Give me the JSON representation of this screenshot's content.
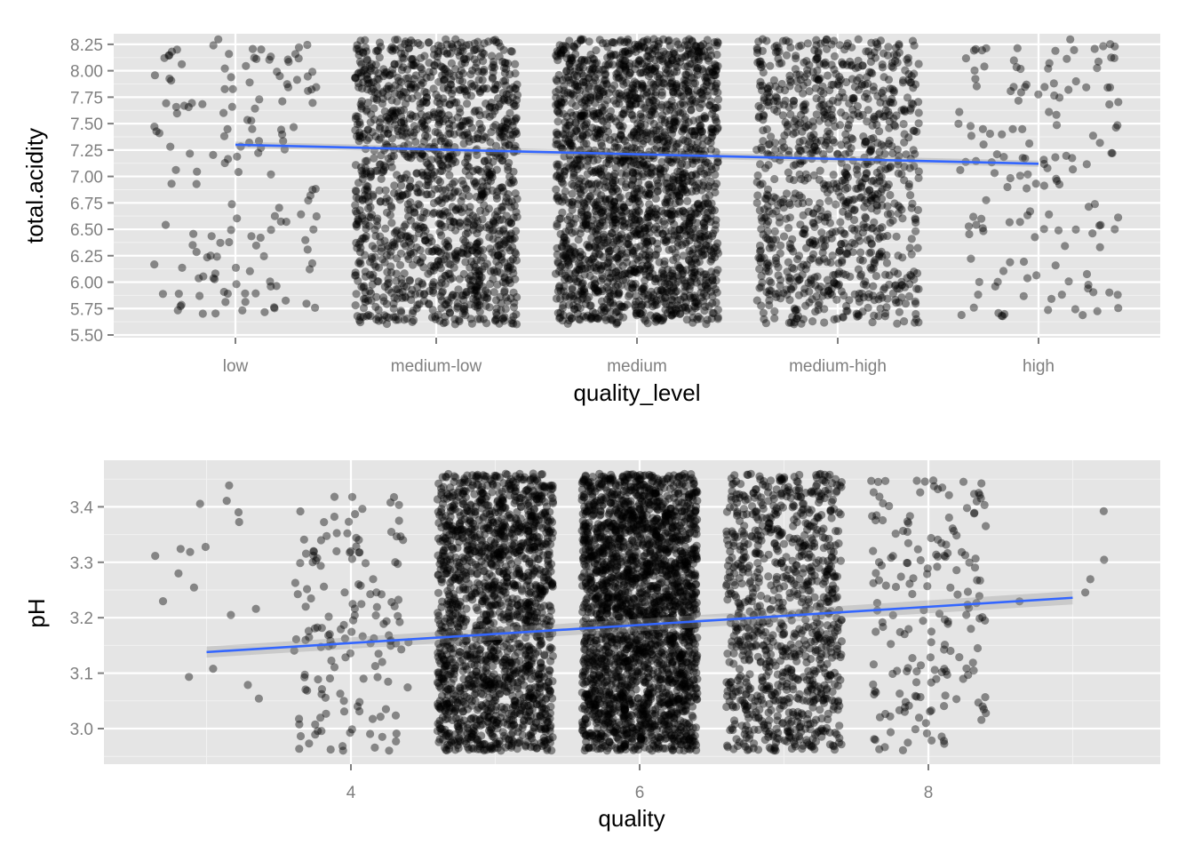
{
  "chart_data": [
    {
      "type": "scatter",
      "xlabel": "quality_level",
      "ylabel": "total.acidity",
      "x_is_categorical": true,
      "categories": [
        "low",
        "medium-low",
        "medium",
        "medium-high",
        "high"
      ],
      "ylim": [
        5.5,
        8.35
      ],
      "yticks": [
        "5.50",
        "5.75",
        "6.00",
        "6.25",
        "6.50",
        "6.75",
        "7.00",
        "7.25",
        "7.50",
        "7.75",
        "8.00",
        "8.25"
      ],
      "grid": true,
      "jitter_width": 0.45,
      "point_color": "#000000",
      "point_opacity": 0.42,
      "point_groups": [
        {
          "category": "low",
          "count": 150,
          "y_range": [
            5.7,
            8.3
          ]
        },
        {
          "category": "medium-low",
          "count": 1450,
          "y_range": [
            5.6,
            8.3
          ]
        },
        {
          "category": "medium",
          "count": 2100,
          "y_range": [
            5.6,
            8.3
          ]
        },
        {
          "category": "medium-high",
          "count": 1000,
          "y_range": [
            5.6,
            8.3
          ]
        },
        {
          "category": "high",
          "count": 150,
          "y_range": [
            5.65,
            8.3
          ]
        }
      ],
      "trend_line": {
        "color": "#3366ff",
        "x": [
          "low",
          "high"
        ],
        "y": [
          7.3,
          7.12
        ]
      }
    },
    {
      "type": "scatter",
      "xlabel": "quality",
      "ylabel": "pH",
      "xlim": [
        2.55,
        9.5
      ],
      "xticks": [
        4,
        6,
        8
      ],
      "ylim": [
        2.94,
        3.48
      ],
      "yticks": [
        "3.0",
        "3.1",
        "3.2",
        "3.3",
        "3.4"
      ],
      "grid": true,
      "jitter_width": 0.4,
      "point_color": "#000000",
      "point_opacity": 0.42,
      "point_groups": [
        {
          "quality": 3,
          "count": 18,
          "y_range": [
            3.0,
            3.45
          ]
        },
        {
          "quality": 4,
          "count": 150,
          "y_range": [
            2.96,
            3.42
          ]
        },
        {
          "quality": 5,
          "count": 1700,
          "y_range": [
            2.96,
            3.46
          ]
        },
        {
          "quality": 6,
          "count": 2400,
          "y_range": [
            2.96,
            3.46
          ]
        },
        {
          "quality": 7,
          "count": 950,
          "y_range": [
            2.96,
            3.46
          ]
        },
        {
          "quality": 8,
          "count": 180,
          "y_range": [
            2.96,
            3.45
          ]
        },
        {
          "quality": 9,
          "count": 5,
          "y_range": [
            3.2,
            3.42
          ]
        }
      ],
      "trend_line": {
        "color": "#3366ff",
        "x": [
          3,
          9
        ],
        "y": [
          3.138,
          3.236
        ]
      }
    }
  ]
}
